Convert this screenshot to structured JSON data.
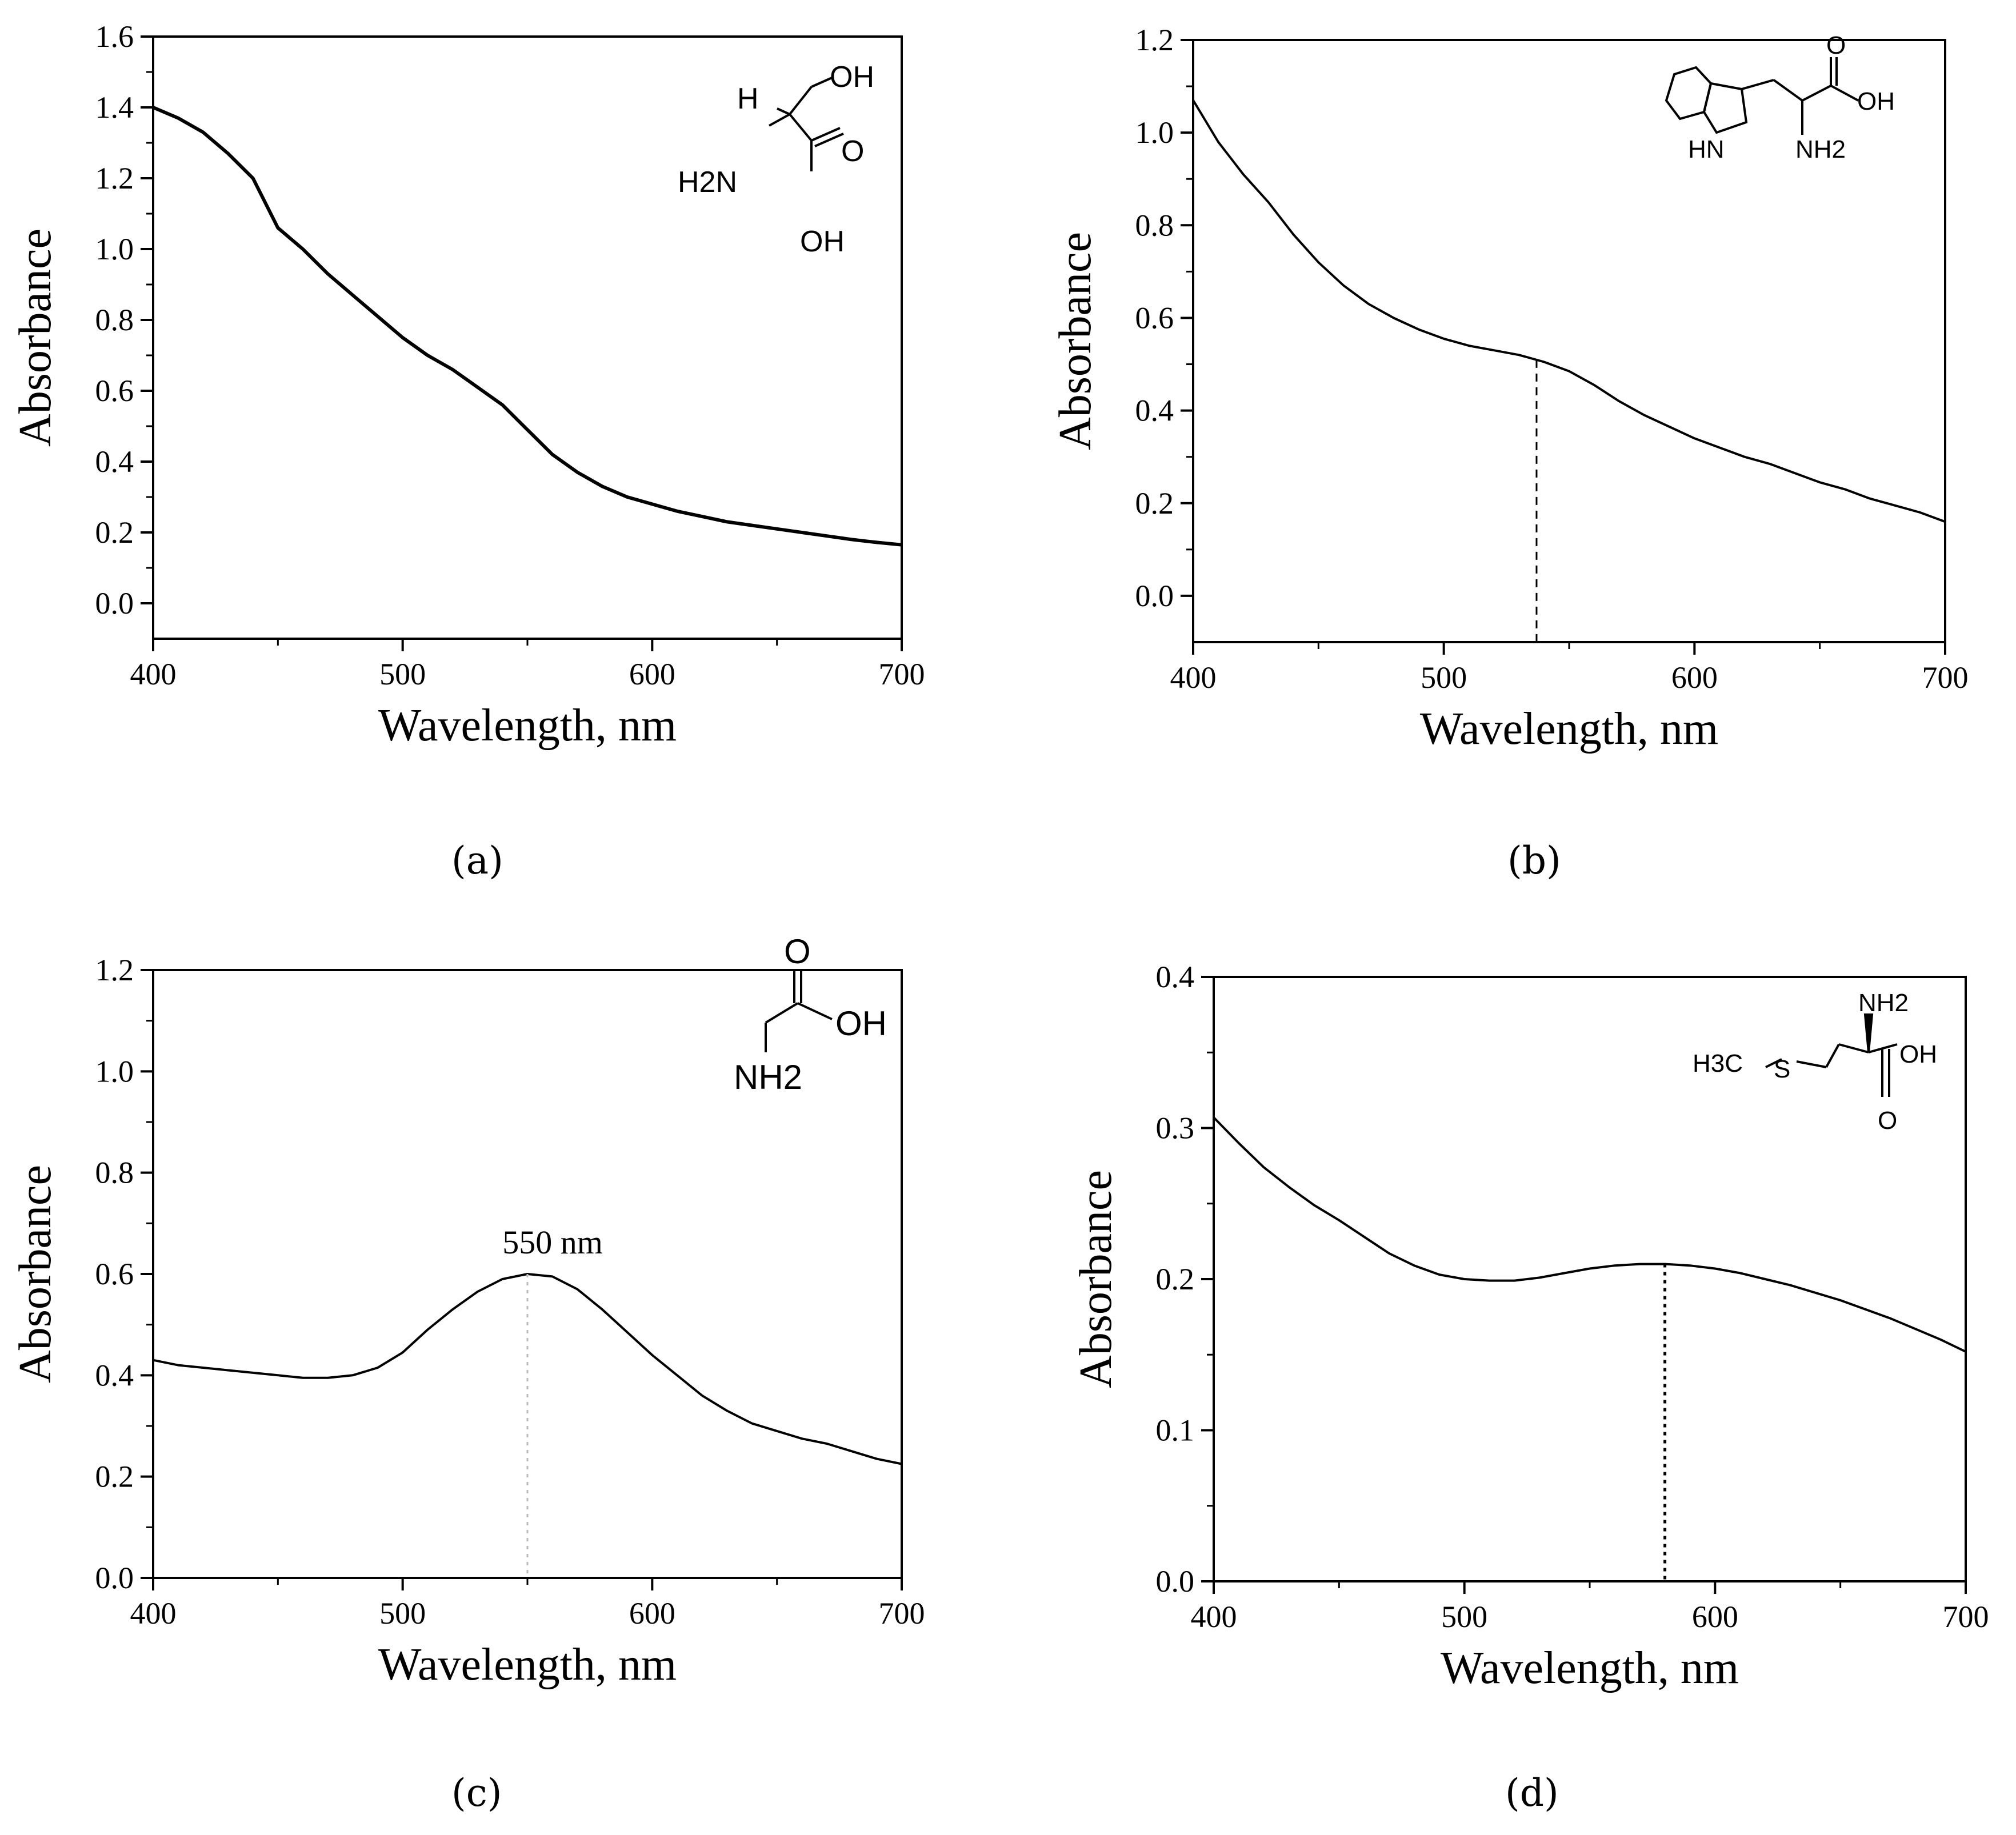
{
  "chart_data": [
    {
      "type": "line",
      "panel_label": "(a)",
      "xlabel": "Wavelength, nm",
      "ylabel": "Absorbance",
      "xlim": [
        400,
        700
      ],
      "ylim": [
        -0.1,
        1.6
      ],
      "xticks": [
        400,
        500,
        600,
        700
      ],
      "yticks": [
        0.0,
        0.2,
        0.4,
        0.6,
        0.8,
        1.0,
        1.2,
        1.4,
        1.6
      ],
      "ytick_decimals": 1,
      "grid": false,
      "marker_line": null,
      "annotation": null,
      "structure": [
        "H",
        "OH",
        "H2N",
        "O",
        "OH"
      ],
      "series": [
        {
          "x": [
            400,
            410,
            420,
            430,
            440,
            450,
            460,
            470,
            480,
            490,
            500,
            510,
            520,
            530,
            540,
            550,
            560,
            570,
            580,
            590,
            600,
            610,
            620,
            630,
            640,
            650,
            660,
            670,
            680,
            690,
            700
          ],
          "y": [
            1.4,
            1.37,
            1.33,
            1.27,
            1.2,
            1.06,
            1.0,
            0.93,
            0.87,
            0.81,
            0.75,
            0.7,
            0.66,
            0.61,
            0.56,
            0.49,
            0.42,
            0.37,
            0.33,
            0.3,
            0.28,
            0.26,
            0.245,
            0.23,
            0.22,
            0.21,
            0.2,
            0.19,
            0.18,
            0.172,
            0.165
          ]
        }
      ]
    },
    {
      "type": "line",
      "panel_label": "(b)",
      "xlabel": "Wavelength, nm",
      "ylabel": "Absorbance",
      "xlim": [
        400,
        700
      ],
      "ylim": [
        -0.1,
        1.2
      ],
      "xticks": [
        400,
        500,
        600,
        700
      ],
      "yticks": [
        0.0,
        0.2,
        0.4,
        0.6,
        0.8,
        1.0,
        1.2
      ],
      "ytick_decimals": 1,
      "grid": false,
      "marker_line": {
        "x": 537,
        "style": "dashed"
      },
      "annotation": null,
      "structure": [
        "O",
        "OH",
        "HN",
        "NH2"
      ],
      "series": [
        {
          "x": [
            400,
            410,
            420,
            430,
            440,
            450,
            460,
            470,
            480,
            490,
            500,
            510,
            520,
            530,
            540,
            550,
            560,
            570,
            580,
            590,
            600,
            610,
            620,
            630,
            640,
            650,
            660,
            670,
            680,
            690,
            700
          ],
          "y": [
            1.07,
            0.98,
            0.91,
            0.85,
            0.78,
            0.72,
            0.67,
            0.63,
            0.6,
            0.575,
            0.555,
            0.54,
            0.53,
            0.52,
            0.505,
            0.485,
            0.455,
            0.42,
            0.39,
            0.365,
            0.34,
            0.32,
            0.3,
            0.285,
            0.265,
            0.245,
            0.23,
            0.21,
            0.195,
            0.18,
            0.16
          ]
        }
      ]
    },
    {
      "type": "line",
      "panel_label": "(c)",
      "xlabel": "Wavelength, nm",
      "ylabel": "Absorbance",
      "xlim": [
        400,
        700
      ],
      "ylim": [
        0.0,
        1.2
      ],
      "xticks": [
        400,
        500,
        600,
        700
      ],
      "yticks": [
        0.0,
        0.2,
        0.4,
        0.6,
        0.8,
        1.0,
        1.2
      ],
      "ytick_decimals": 1,
      "grid": false,
      "marker_line": {
        "x": 550,
        "style": "dotted"
      },
      "annotation": {
        "text": "550 nm",
        "x": 550,
        "y": 0.6
      },
      "structure": [
        "O",
        "OH",
        "NH2"
      ],
      "series": [
        {
          "x": [
            400,
            410,
            420,
            430,
            440,
            450,
            460,
            470,
            480,
            490,
            500,
            510,
            520,
            530,
            540,
            550,
            560,
            570,
            580,
            590,
            600,
            610,
            620,
            630,
            640,
            650,
            660,
            670,
            680,
            690,
            700
          ],
          "y": [
            0.43,
            0.42,
            0.415,
            0.41,
            0.405,
            0.4,
            0.395,
            0.395,
            0.4,
            0.415,
            0.445,
            0.49,
            0.53,
            0.565,
            0.59,
            0.6,
            0.595,
            0.57,
            0.53,
            0.485,
            0.44,
            0.4,
            0.36,
            0.33,
            0.305,
            0.29,
            0.275,
            0.265,
            0.25,
            0.235,
            0.225
          ]
        }
      ]
    },
    {
      "type": "line",
      "panel_label": "(d)",
      "xlabel": "Wavelength, nm",
      "ylabel": "Absorbance",
      "xlim": [
        400,
        700
      ],
      "ylim": [
        0.0,
        0.4
      ],
      "xticks": [
        400,
        500,
        600,
        700
      ],
      "yticks": [
        0.0,
        0.1,
        0.2,
        0.3,
        0.4
      ],
      "ytick_decimals": 1,
      "grid": false,
      "marker_line": {
        "x": 580,
        "style": "dotted"
      },
      "annotation": null,
      "structure": [
        "NH2",
        "H3C",
        "S",
        "OH",
        "O"
      ],
      "series": [
        {
          "x": [
            400,
            410,
            420,
            430,
            440,
            450,
            460,
            470,
            480,
            490,
            500,
            510,
            520,
            530,
            540,
            550,
            560,
            570,
            580,
            590,
            600,
            610,
            620,
            630,
            640,
            650,
            660,
            670,
            680,
            690,
            700
          ],
          "y": [
            0.307,
            0.29,
            0.274,
            0.261,
            0.249,
            0.239,
            0.228,
            0.217,
            0.209,
            0.203,
            0.2,
            0.199,
            0.199,
            0.201,
            0.204,
            0.207,
            0.209,
            0.21,
            0.21,
            0.209,
            0.207,
            0.204,
            0.2,
            0.196,
            0.191,
            0.186,
            0.18,
            0.174,
            0.167,
            0.16,
            0.152
          ]
        }
      ]
    }
  ]
}
